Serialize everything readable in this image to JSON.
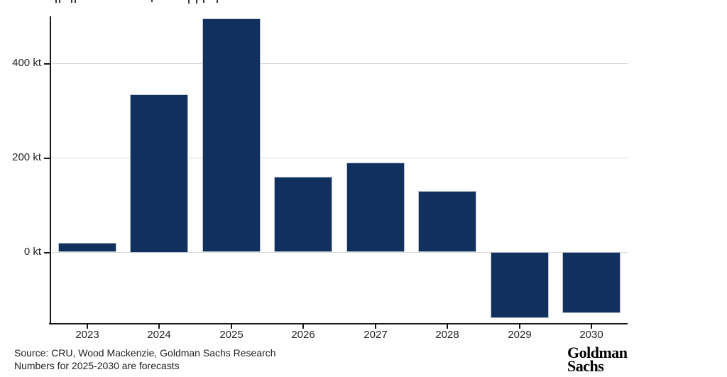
{
  "chart_data": {
    "type": "bar",
    "title": "",
    "categories": [
      "2023",
      "2024",
      "2025",
      "2026",
      "2027",
      "2028",
      "2029",
      "2030"
    ],
    "values": [
      20,
      335,
      495,
      160,
      190,
      130,
      -140,
      -130
    ],
    "unit": "kt",
    "xlabel": "",
    "ylabel": "",
    "yticks": [
      {
        "value": 400,
        "label": "400 kt"
      },
      {
        "value": 200,
        "label": "200 kt"
      },
      {
        "value": 0,
        "label": "0 kt"
      }
    ],
    "ylim": [
      -150,
      500
    ],
    "grid": true,
    "legend_position": "none",
    "bar_color": "#12305e",
    "bar_edge_color": "#b7c1cf",
    "gridline_color": "#d9d9d9",
    "axis_color": "#161616"
  },
  "footer": {
    "source_line": "Source: CRU, Wood Mackenzie, Goldman Sachs Research",
    "note_line": "Numbers for 2025-2030 are forecasts"
  },
  "branding": {
    "logo_line1": "Goldman",
    "logo_line2": "Sachs"
  }
}
